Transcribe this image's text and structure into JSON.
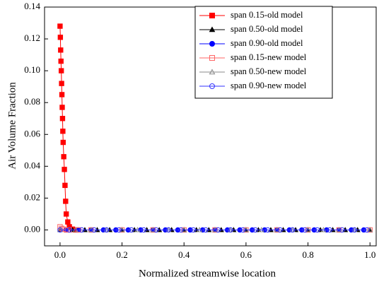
{
  "chart_data": {
    "type": "line",
    "x_label": "Normalized streamwise location",
    "y_label": "Air Volume Fraction",
    "xlim": [
      -0.05,
      1.02
    ],
    "ylim": [
      -0.01,
      0.14
    ],
    "xticks": [
      {
        "value": 0,
        "label": "0.0"
      },
      {
        "value": 0.2,
        "label": "0.2"
      },
      {
        "value": 0.4,
        "label": "0.4"
      },
      {
        "value": 0.6,
        "label": "0.6"
      },
      {
        "value": 0.8,
        "label": "0.8"
      },
      {
        "value": 1,
        "label": "1.0"
      }
    ],
    "yticks": [
      {
        "value": 0,
        "label": "0.00"
      },
      {
        "value": 0.02,
        "label": "0.02"
      },
      {
        "value": 0.04,
        "label": "0.04"
      },
      {
        "value": 0.06,
        "label": "0.06"
      },
      {
        "value": 0.08,
        "label": "0.08"
      },
      {
        "value": 0.1,
        "label": "0.10"
      },
      {
        "value": 0.12,
        "label": "0.12"
      },
      {
        "value": 0.14,
        "label": "0.14"
      }
    ],
    "legend": "upper right",
    "series": [
      {
        "name": "span 0.15-old model",
        "color": "#ff0000",
        "marker": "square",
        "filled": true,
        "x": [
          0,
          0.001,
          0.002,
          0.003,
          0.004,
          0.005,
          0.006,
          0.007,
          0.008,
          0.009,
          0.01,
          0.012,
          0.014,
          0.016,
          0.018,
          0.02,
          0.025,
          0.03,
          0.04,
          0.05
        ],
        "values": [
          0.128,
          0.121,
          0.113,
          0.106,
          0.1,
          0.092,
          0.085,
          0.077,
          0.07,
          0.062,
          0.055,
          0.046,
          0.038,
          0.028,
          0.018,
          0.01,
          0.005,
          0.002,
          0.0005,
          0
        ]
      },
      {
        "name": "span 0.50-old model",
        "color": "#000000",
        "marker": "triangle",
        "filled": true,
        "x": [
          0,
          0.04,
          0.08,
          0.12,
          0.16,
          0.2,
          0.24,
          0.28,
          0.32,
          0.36,
          0.4,
          0.44,
          0.48,
          0.52,
          0.56,
          0.6,
          0.64,
          0.68,
          0.72,
          0.76,
          0.8,
          0.84,
          0.88,
          0.92,
          0.96,
          1
        ],
        "values": [
          0,
          0,
          0,
          0,
          0,
          0,
          0,
          0,
          0,
          0,
          0,
          0,
          0,
          0,
          0,
          0,
          0,
          0,
          0,
          0,
          0,
          0,
          0,
          0,
          0,
          0
        ]
      },
      {
        "name": "span 0.90-old model",
        "color": "#0000ff",
        "marker": "circle",
        "filled": true,
        "x": [
          0.02,
          0.06,
          0.1,
          0.14,
          0.18,
          0.22,
          0.26,
          0.3,
          0.34,
          0.38,
          0.42,
          0.46,
          0.5,
          0.54,
          0.58,
          0.62,
          0.66,
          0.7,
          0.74,
          0.78,
          0.82,
          0.86,
          0.9,
          0.94,
          0.98
        ],
        "values": [
          0,
          0,
          0,
          0,
          0,
          0,
          0,
          0,
          0,
          0,
          0,
          0,
          0,
          0,
          0,
          0,
          0,
          0,
          0,
          0,
          0,
          0,
          0,
          0,
          0
        ]
      },
      {
        "name": "span 0.15-new model",
        "color": "#ff6666",
        "marker": "square",
        "filled": false,
        "x": [
          0,
          0.005,
          0.01,
          0.02,
          0.03,
          0.06,
          0.1,
          0.2,
          0.3,
          0.4,
          0.5,
          0.6,
          0.7,
          0.8,
          0.9,
          1
        ],
        "values": [
          0.002,
          0.001,
          0.0005,
          0,
          0,
          0,
          0,
          0,
          0,
          0,
          0,
          0,
          0,
          0,
          0,
          0
        ]
      },
      {
        "name": "span 0.50-new model",
        "color": "#888888",
        "marker": "triangle",
        "filled": false,
        "x": [
          0,
          0.05,
          0.1,
          0.15,
          0.2,
          0.25,
          0.3,
          0.35,
          0.4,
          0.45,
          0.5,
          0.55,
          0.6,
          0.65,
          0.7,
          0.75,
          0.8,
          0.85,
          0.9,
          0.95,
          1
        ],
        "values": [
          0,
          0,
          0,
          0,
          0,
          0,
          0,
          0,
          0,
          0,
          0,
          0,
          0,
          0,
          0,
          0,
          0,
          0,
          0,
          0,
          0
        ]
      },
      {
        "name": "span 0.90-new model",
        "color": "#3333ff",
        "marker": "circle",
        "filled": false,
        "x": [
          0,
          0.03,
          0.07,
          0.11,
          0.15,
          0.19,
          0.23,
          0.27,
          0.31,
          0.35,
          0.39,
          0.43,
          0.47,
          0.51,
          0.55,
          0.59,
          0.63,
          0.67,
          0.71,
          0.75,
          0.79,
          0.83,
          0.87,
          0.91,
          0.95,
          0.99
        ],
        "values": [
          0,
          0,
          0,
          0,
          0,
          0,
          0,
          0,
          0,
          0,
          0,
          0,
          0,
          0,
          0,
          0,
          0,
          0,
          0,
          0,
          0,
          0,
          0,
          0,
          0,
          0
        ]
      }
    ]
  }
}
